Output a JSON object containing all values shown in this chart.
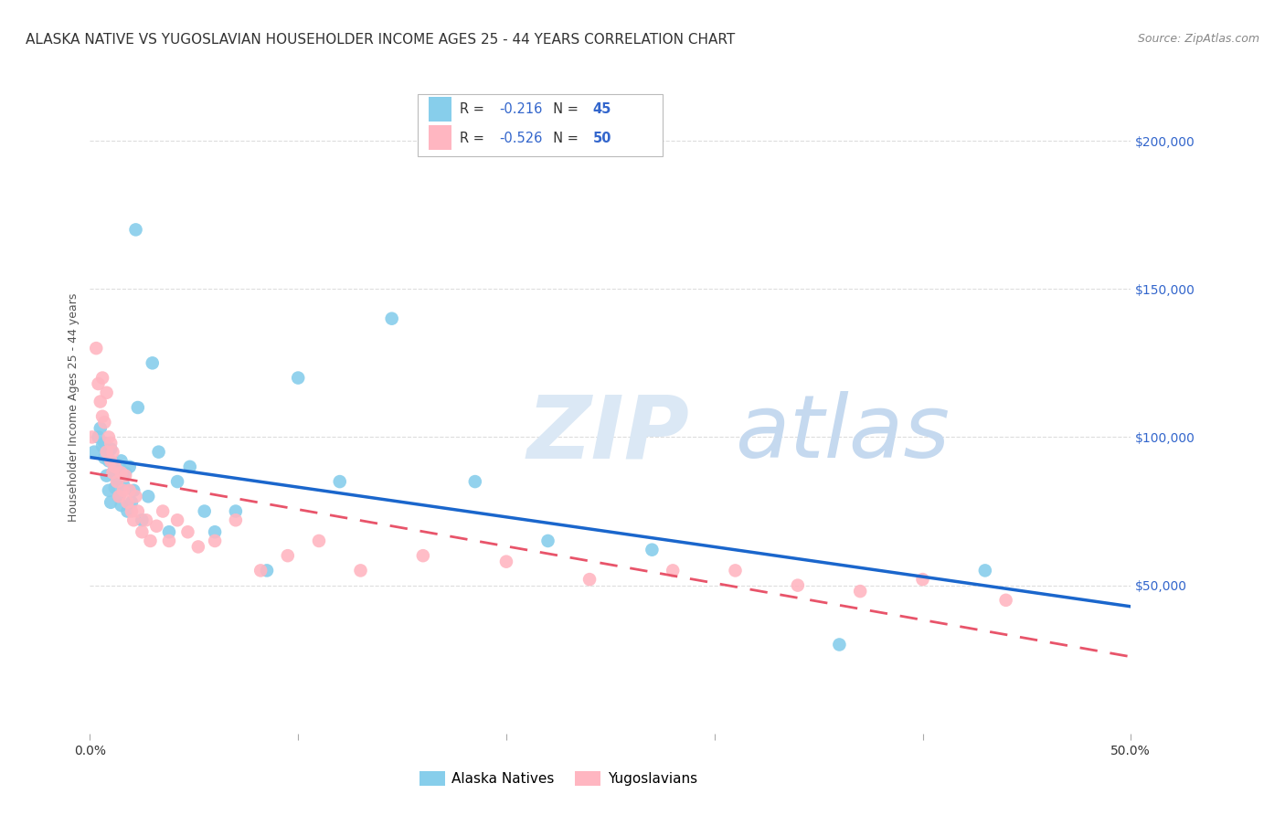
{
  "title": "ALASKA NATIVE VS YUGOSLAVIAN HOUSEHOLDER INCOME AGES 25 - 44 YEARS CORRELATION CHART",
  "source": "Source: ZipAtlas.com",
  "ylabel": "Householder Income Ages 25 - 44 years",
  "xlim": [
    0.0,
    0.5
  ],
  "ylim": [
    0,
    220000
  ],
  "yticks": [
    50000,
    100000,
    150000,
    200000
  ],
  "ytick_labels": [
    "$50,000",
    "$100,000",
    "$150,000",
    "$200,000"
  ],
  "xticks": [
    0.0,
    0.1,
    0.2,
    0.3,
    0.4,
    0.5
  ],
  "xtick_labels": [
    "0.0%",
    "",
    "",
    "",
    "",
    "50.0%"
  ],
  "alaska_color": "#87CEEB",
  "yugo_color": "#FFB6C1",
  "alaska_line_color": "#1a66cc",
  "yugo_line_color": "#e8546a",
  "r_alaska": -0.216,
  "n_alaska": 45,
  "r_yugo": -0.526,
  "n_yugo": 50,
  "legend_label_alaska": "Alaska Natives",
  "legend_label_yugo": "Yugoslavians",
  "background_color": "#ffffff",
  "grid_color": "#dddddd",
  "title_fontsize": 11,
  "source_fontsize": 9,
  "axis_label_fontsize": 9,
  "tick_fontsize": 10,
  "alaska_scatter_x": [
    0.002,
    0.004,
    0.005,
    0.006,
    0.007,
    0.007,
    0.008,
    0.009,
    0.009,
    0.01,
    0.01,
    0.011,
    0.012,
    0.012,
    0.013,
    0.014,
    0.015,
    0.015,
    0.016,
    0.017,
    0.018,
    0.019,
    0.02,
    0.021,
    0.022,
    0.023,
    0.025,
    0.028,
    0.03,
    0.033,
    0.038,
    0.042,
    0.048,
    0.055,
    0.06,
    0.07,
    0.085,
    0.1,
    0.12,
    0.145,
    0.185,
    0.22,
    0.27,
    0.36,
    0.43
  ],
  "alaska_scatter_y": [
    95000,
    100000,
    103000,
    97000,
    93000,
    98000,
    87000,
    92000,
    82000,
    96000,
    78000,
    88000,
    83000,
    91000,
    86000,
    80000,
    77000,
    92000,
    84000,
    88000,
    75000,
    90000,
    78000,
    82000,
    170000,
    110000,
    72000,
    80000,
    125000,
    95000,
    68000,
    85000,
    90000,
    75000,
    68000,
    75000,
    55000,
    120000,
    85000,
    140000,
    85000,
    65000,
    62000,
    30000,
    55000
  ],
  "yugo_scatter_x": [
    0.001,
    0.003,
    0.004,
    0.005,
    0.006,
    0.006,
    0.007,
    0.008,
    0.008,
    0.009,
    0.01,
    0.01,
    0.011,
    0.011,
    0.012,
    0.013,
    0.014,
    0.015,
    0.016,
    0.017,
    0.018,
    0.019,
    0.02,
    0.021,
    0.022,
    0.023,
    0.025,
    0.027,
    0.029,
    0.032,
    0.035,
    0.038,
    0.042,
    0.047,
    0.052,
    0.06,
    0.07,
    0.082,
    0.095,
    0.11,
    0.13,
    0.16,
    0.2,
    0.24,
    0.28,
    0.31,
    0.34,
    0.37,
    0.4,
    0.44
  ],
  "yugo_scatter_y": [
    100000,
    130000,
    118000,
    112000,
    120000,
    107000,
    105000,
    95000,
    115000,
    100000,
    92000,
    98000,
    88000,
    95000,
    90000,
    85000,
    80000,
    88000,
    82000,
    87000,
    78000,
    82000,
    75000,
    72000,
    80000,
    75000,
    68000,
    72000,
    65000,
    70000,
    75000,
    65000,
    72000,
    68000,
    63000,
    65000,
    72000,
    55000,
    60000,
    65000,
    55000,
    60000,
    58000,
    52000,
    55000,
    55000,
    50000,
    48000,
    52000,
    45000
  ]
}
